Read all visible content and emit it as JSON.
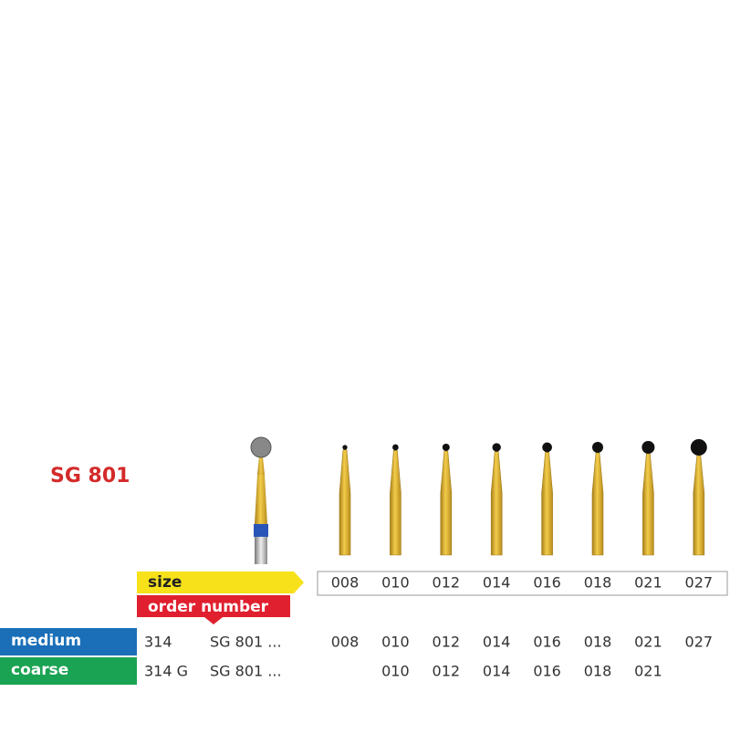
{
  "title": "SG 801",
  "labels": {
    "size": "size",
    "order_number": "order number"
  },
  "sizes": [
    "008",
    "010",
    "012",
    "014",
    "016",
    "018",
    "021",
    "027"
  ],
  "rows": [
    {
      "grit": "medium",
      "code": "314",
      "order": "SG 801 ...",
      "sizes": [
        "008",
        "010",
        "012",
        "014",
        "016",
        "018",
        "021",
        "027"
      ],
      "color": "#1a6fb8"
    },
    {
      "grit": "coarse",
      "code": "314 G",
      "order": "SG 801 ...",
      "sizes": [
        null,
        "010",
        "012",
        "014",
        "016",
        "018",
        "021",
        null
      ],
      "color": "#1aa352"
    }
  ]
}
